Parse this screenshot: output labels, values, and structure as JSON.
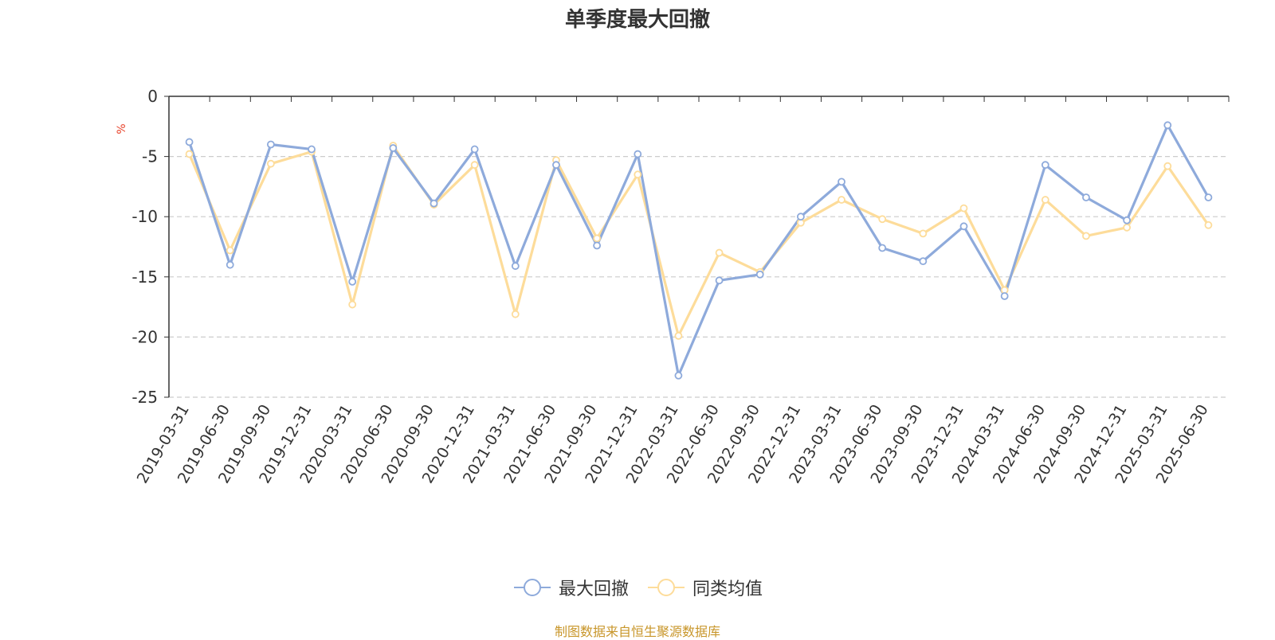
{
  "chart_data": {
    "type": "line",
    "title": "单季度最大回撤",
    "ylabel": "%",
    "ylim": [
      -25,
      0
    ],
    "yticks": [
      0,
      -5,
      -10,
      -15,
      -20,
      -25
    ],
    "grid": true,
    "legend_position": "bottom",
    "categories": [
      "2019-03-31",
      "2019-06-30",
      "2019-09-30",
      "2019-12-31",
      "2020-03-31",
      "2020-06-30",
      "2020-09-30",
      "2020-12-31",
      "2021-03-31",
      "2021-06-30",
      "2021-09-30",
      "2021-12-31",
      "2022-03-31",
      "2022-06-30",
      "2022-09-30",
      "2022-12-31",
      "2023-03-31",
      "2023-06-30",
      "2023-09-30",
      "2023-12-31",
      "2024-03-31",
      "2024-06-30",
      "2024-09-30",
      "2024-12-31",
      "2025-03-31",
      "2025-06-30"
    ],
    "series": [
      {
        "name": "最大回撤",
        "color": "#8eaadb",
        "values": [
          -3.8,
          -14.0,
          -4.0,
          -4.4,
          -15.4,
          -4.3,
          -8.9,
          -4.4,
          -14.1,
          -5.7,
          -12.4,
          -4.8,
          -23.2,
          -15.3,
          -14.8,
          -10.0,
          -7.1,
          -12.6,
          -13.7,
          -10.8,
          -16.6,
          -5.7,
          -8.4,
          -10.3,
          -2.4,
          -8.4
        ]
      },
      {
        "name": "同类均值",
        "color": "#fddc9a",
        "values": [
          -4.8,
          -12.8,
          -5.6,
          -4.6,
          -17.3,
          -4.1,
          -9.0,
          -5.7,
          -18.1,
          -5.3,
          -11.8,
          -6.5,
          -19.9,
          -13.0,
          -14.6,
          -10.5,
          -8.6,
          -10.2,
          -11.4,
          -9.3,
          -16.1,
          -8.6,
          -11.6,
          -10.9,
          -5.8,
          -10.7
        ]
      }
    ]
  },
  "source_note": "制图数据来自恒生聚源数据库"
}
